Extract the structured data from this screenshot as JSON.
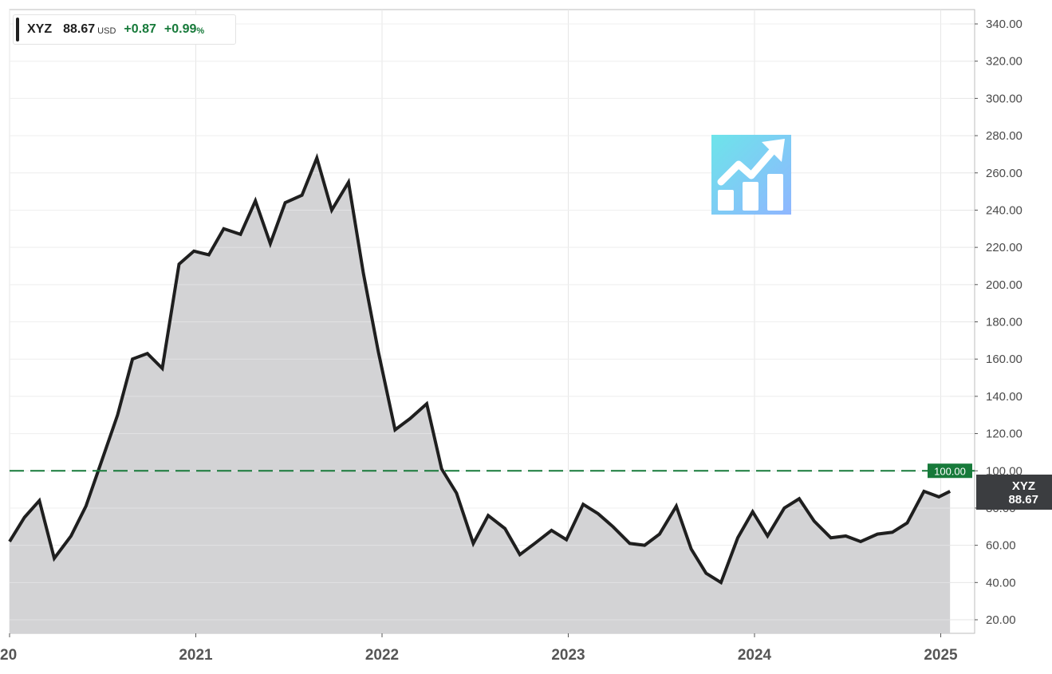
{
  "legend": {
    "symbol": "XYZ",
    "price": "88.67",
    "currency": "USD",
    "change": "+0.87",
    "change_pct": "+0.99",
    "pct_sign": "%",
    "color_positive": "#177a3a",
    "series_color": "#1f1f1f"
  },
  "reference_line": {
    "value": 100,
    "label": "100.00",
    "color": "#177a3a"
  },
  "last_price_tag": {
    "symbol": "XYZ",
    "value": "88.67",
    "color": "#3b3d40"
  },
  "logo": {
    "icon": "growth-chart-icon",
    "colors": [
      "#6de4ea",
      "#8fb6ff"
    ]
  },
  "chart_data": {
    "type": "area",
    "x_ticks": [
      {
        "t": 2020.0,
        "label": "20"
      },
      {
        "t": 2021.0,
        "label": "2021"
      },
      {
        "t": 2022.0,
        "label": "2022"
      },
      {
        "t": 2023.0,
        "label": "2023"
      },
      {
        "t": 2024.0,
        "label": "2024"
      },
      {
        "t": 2025.0,
        "label": "2025"
      }
    ],
    "y_ticks": [
      "20.00",
      "40.00",
      "60.00",
      "80.00",
      "100.00",
      "120.00",
      "140.00",
      "160.00",
      "180.00",
      "200.00",
      "220.00",
      "240.00",
      "260.00",
      "280.00",
      "300.00",
      "320.00",
      "340.00"
    ],
    "ylim": [
      15,
      345
    ],
    "grid": true,
    "line_color": "#1f1f1f",
    "fill_color": "#d3d3d5",
    "series": [
      {
        "name": "XYZ",
        "points": [
          [
            2020.0,
            62
          ],
          [
            2020.08,
            75
          ],
          [
            2020.16,
            84
          ],
          [
            2020.24,
            53
          ],
          [
            2020.33,
            65
          ],
          [
            2020.41,
            81
          ],
          [
            2020.49,
            104
          ],
          [
            2020.58,
            130
          ],
          [
            2020.66,
            160
          ],
          [
            2020.74,
            163
          ],
          [
            2020.82,
            155
          ],
          [
            2020.91,
            211
          ],
          [
            2020.99,
            218
          ],
          [
            2021.07,
            216
          ],
          [
            2021.15,
            230
          ],
          [
            2021.24,
            227
          ],
          [
            2021.32,
            245
          ],
          [
            2021.4,
            222
          ],
          [
            2021.48,
            244
          ],
          [
            2021.57,
            248
          ],
          [
            2021.65,
            268
          ],
          [
            2021.73,
            240
          ],
          [
            2021.82,
            255
          ],
          [
            2021.9,
            206
          ],
          [
            2021.98,
            164
          ],
          [
            2022.07,
            122
          ],
          [
            2022.15,
            128
          ],
          [
            2022.24,
            136
          ],
          [
            2022.32,
            101
          ],
          [
            2022.4,
            88
          ],
          [
            2022.49,
            61
          ],
          [
            2022.57,
            76
          ],
          [
            2022.66,
            69
          ],
          [
            2022.74,
            55
          ],
          [
            2022.82,
            61
          ],
          [
            2022.91,
            68
          ],
          [
            2022.99,
            63
          ],
          [
            2023.08,
            82
          ],
          [
            2023.16,
            77
          ],
          [
            2023.24,
            70
          ],
          [
            2023.33,
            61
          ],
          [
            2023.41,
            60
          ],
          [
            2023.49,
            66
          ],
          [
            2023.58,
            81
          ],
          [
            2023.66,
            58
          ],
          [
            2023.74,
            45
          ],
          [
            2023.82,
            40
          ],
          [
            2023.91,
            64
          ],
          [
            2023.99,
            78
          ],
          [
            2024.07,
            65
          ],
          [
            2024.16,
            80
          ],
          [
            2024.24,
            85
          ],
          [
            2024.32,
            73
          ],
          [
            2024.41,
            64
          ],
          [
            2024.49,
            65
          ],
          [
            2024.57,
            62
          ],
          [
            2024.66,
            66
          ],
          [
            2024.74,
            67
          ],
          [
            2024.82,
            72
          ],
          [
            2024.91,
            89
          ],
          [
            2024.99,
            86
          ],
          [
            2025.05,
            89
          ]
        ]
      }
    ]
  }
}
